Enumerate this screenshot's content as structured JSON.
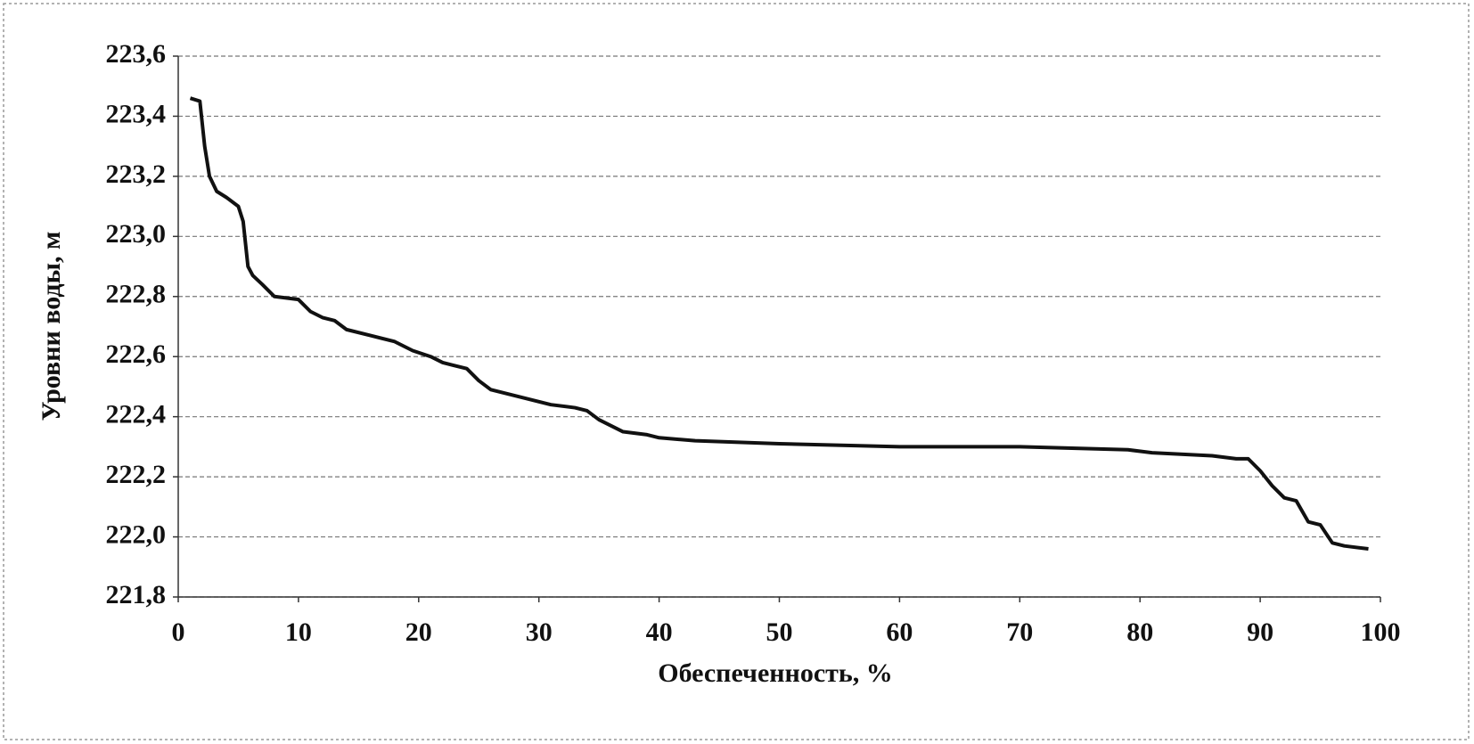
{
  "chart_data": {
    "type": "line",
    "x_label": "Обеспеченность, %",
    "y_label": "Уровни воды, м",
    "x": [
      1,
      1.8,
      2.2,
      2.6,
      3.2,
      4,
      5,
      5.4,
      5.8,
      6.2,
      7,
      8,
      10,
      11,
      12,
      13,
      14,
      16,
      18,
      19.5,
      21,
      22,
      24,
      25,
      26,
      28,
      30,
      31,
      33,
      34,
      35,
      36,
      37,
      39,
      40,
      43,
      50,
      60,
      70,
      79,
      81,
      86,
      88,
      89,
      90,
      91,
      92,
      93,
      94,
      95,
      96,
      97,
      99
    ],
    "series": [
      {
        "name": "Уровни воды",
        "color": "#111111",
        "values": [
          223.46,
          223.45,
          223.3,
          223.2,
          223.15,
          223.13,
          223.1,
          223.05,
          222.9,
          222.87,
          222.84,
          222.8,
          222.79,
          222.75,
          222.73,
          222.72,
          222.69,
          222.67,
          222.65,
          222.62,
          222.6,
          222.58,
          222.56,
          222.52,
          222.49,
          222.47,
          222.45,
          222.44,
          222.43,
          222.42,
          222.39,
          222.37,
          222.35,
          222.34,
          222.33,
          222.32,
          222.31,
          222.3,
          222.3,
          222.29,
          222.28,
          222.27,
          222.26,
          222.26,
          222.22,
          222.17,
          222.13,
          222.12,
          222.05,
          222.04,
          221.98,
          221.97,
          221.96
        ]
      }
    ],
    "xlim": [
      0,
      100
    ],
    "xticks": [
      0,
      10,
      20,
      30,
      40,
      50,
      60,
      70,
      80,
      90,
      100
    ],
    "ylim": [
      221.8,
      223.6
    ],
    "yticks": [
      {
        "value": 221.8,
        "label": "221,8"
      },
      {
        "value": 222.0,
        "label": "222,0"
      },
      {
        "value": 222.2,
        "label": "222,2"
      },
      {
        "value": 222.4,
        "label": "222,4"
      },
      {
        "value": 222.6,
        "label": "222,6"
      },
      {
        "value": 222.8,
        "label": "222,8"
      },
      {
        "value": 223.0,
        "label": "223,0"
      },
      {
        "value": 223.2,
        "label": "223,2"
      },
      {
        "value": 223.4,
        "label": "223,4"
      },
      {
        "value": 223.6,
        "label": "223,6"
      }
    ],
    "grid": true
  }
}
